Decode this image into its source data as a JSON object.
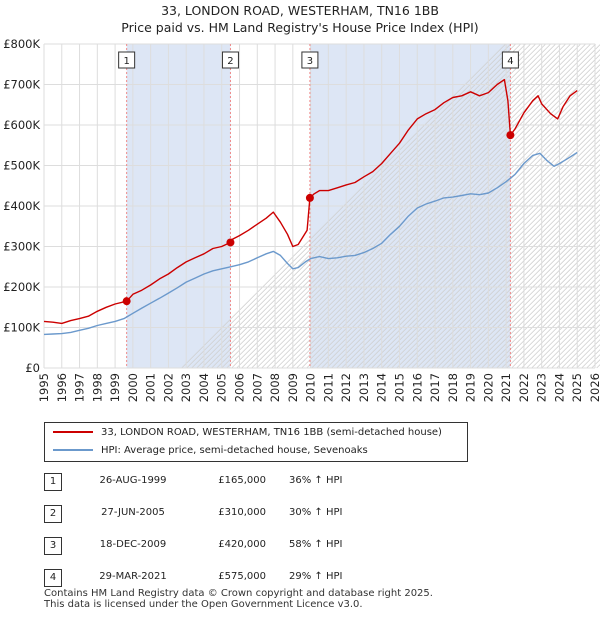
{
  "header": {
    "title": "33, LONDON ROAD, WESTERHAM, TN16 1BB",
    "subtitle": "Price paid vs. HM Land Registry's House Price Index (HPI)"
  },
  "legend": {
    "property": "33, LONDON ROAD, WESTERHAM, TN16 1BB (semi-detached house)",
    "hpi": "HPI: Average price, semi-detached house, Sevenoaks"
  },
  "sales": [
    {
      "num": "1",
      "date": "26-AUG-1999",
      "price": "£165,000",
      "hpi": "36% ↑ HPI"
    },
    {
      "num": "2",
      "date": "27-JUN-2005",
      "price": "£310,000",
      "hpi": "30% ↑ HPI"
    },
    {
      "num": "3",
      "date": "18-DEC-2009",
      "price": "£420,000",
      "hpi": "58% ↑ HPI"
    },
    {
      "num": "4",
      "date": "29-MAR-2021",
      "price": "£575,000",
      "hpi": "29% ↑ HPI"
    }
  ],
  "footer": {
    "line1": "Contains HM Land Registry data © Crown copyright and database right 2025.",
    "line2": "This data is licensed under the Open Government Licence v3.0."
  },
  "colors": {
    "property_line": "#cc0000",
    "hpi_line": "#6b99cc",
    "sale_band": "#dde6f5",
    "marker_line": "#ee8888",
    "grid": "#dddddd"
  },
  "chart_data": {
    "type": "line",
    "xlim": [
      1995,
      2026
    ],
    "ylim": [
      0,
      800000
    ],
    "x_ticks": [
      1995,
      1996,
      1997,
      1998,
      1999,
      2000,
      2001,
      2002,
      2003,
      2004,
      2005,
      2006,
      2007,
      2008,
      2009,
      2010,
      2011,
      2012,
      2013,
      2014,
      2015,
      2016,
      2017,
      2018,
      2019,
      2020,
      2021,
      2022,
      2023,
      2024,
      2025,
      2026
    ],
    "y_ticks": [
      {
        "value": 0,
        "label": "£0"
      },
      {
        "value": 100000,
        "label": "£100K"
      },
      {
        "value": 200000,
        "label": "£200K"
      },
      {
        "value": 300000,
        "label": "£300K"
      },
      {
        "value": 400000,
        "label": "£400K"
      },
      {
        "value": 500000,
        "label": "£500K"
      },
      {
        "value": 600000,
        "label": "£600K"
      },
      {
        "value": 700000,
        "label": "£700K"
      },
      {
        "value": 800000,
        "label": "£800K"
      }
    ],
    "sale_markers": [
      {
        "label": "1",
        "x": 1999.65,
        "y": 165000
      },
      {
        "label": "2",
        "x": 2005.49,
        "y": 310000
      },
      {
        "label": "3",
        "x": 2009.96,
        "y": 420000
      },
      {
        "label": "4",
        "x": 2021.24,
        "y": 575000
      }
    ],
    "series": [
      {
        "name": "33, LONDON ROAD, WESTERHAM, TN16 1BB (semi-detached house)",
        "x": [
          1995.0,
          1995.5,
          1996.0,
          1996.5,
          1997.0,
          1997.5,
          1998.0,
          1998.5,
          1999.0,
          1999.65,
          2000.0,
          2000.5,
          2001.0,
          2001.5,
          2002.0,
          2002.5,
          2003.0,
          2003.5,
          2004.0,
          2004.5,
          2005.0,
          2005.49,
          2005.6,
          2006.0,
          2006.5,
          2007.0,
          2007.5,
          2007.9,
          2008.3,
          2008.7,
          2009.0,
          2009.3,
          2009.8,
          2009.96,
          2010.2,
          2010.5,
          2011.0,
          2011.5,
          2012.0,
          2012.5,
          2013.0,
          2013.5,
          2014.0,
          2014.5,
          2015.0,
          2015.5,
          2016.0,
          2016.5,
          2017.0,
          2017.5,
          2018.0,
          2018.5,
          2019.0,
          2019.5,
          2020.0,
          2020.5,
          2020.9,
          2021.1,
          2021.24,
          2021.5,
          2022.0,
          2022.5,
          2022.8,
          2023.0,
          2023.5,
          2023.9,
          2024.2,
          2024.6,
          2025.0
        ],
        "y": [
          115000,
          113000,
          110000,
          117000,
          122000,
          128000,
          140000,
          150000,
          158000,
          165000,
          182000,
          192000,
          205000,
          220000,
          232000,
          248000,
          262000,
          272000,
          282000,
          295000,
          300000,
          310000,
          318000,
          327000,
          340000,
          355000,
          370000,
          385000,
          360000,
          330000,
          300000,
          305000,
          340000,
          420000,
          430000,
          438000,
          438000,
          445000,
          452000,
          458000,
          472000,
          485000,
          505000,
          530000,
          555000,
          588000,
          615000,
          628000,
          638000,
          655000,
          668000,
          672000,
          682000,
          672000,
          680000,
          700000,
          712000,
          660000,
          575000,
          590000,
          630000,
          660000,
          672000,
          652000,
          628000,
          615000,
          645000,
          672000,
          685000
        ]
      },
      {
        "name": "HPI: Average price, semi-detached house, Sevenoaks",
        "x": [
          1995.0,
          1995.5,
          1996.0,
          1996.5,
          1997.0,
          1997.5,
          1998.0,
          1998.5,
          1999.0,
          1999.5,
          2000.0,
          2000.5,
          2001.0,
          2001.5,
          2002.0,
          2002.5,
          2003.0,
          2003.5,
          2004.0,
          2004.5,
          2005.0,
          2005.5,
          2006.0,
          2006.5,
          2007.0,
          2007.5,
          2007.9,
          2008.3,
          2008.7,
          2009.0,
          2009.3,
          2009.7,
          2010.0,
          2010.5,
          2011.0,
          2011.5,
          2012.0,
          2012.5,
          2013.0,
          2013.5,
          2014.0,
          2014.5,
          2015.0,
          2015.5,
          2016.0,
          2016.5,
          2017.0,
          2017.5,
          2018.0,
          2018.5,
          2019.0,
          2019.5,
          2020.0,
          2020.5,
          2021.0,
          2021.5,
          2022.0,
          2022.5,
          2022.9,
          2023.3,
          2023.7,
          2024.0,
          2024.5,
          2025.0
        ],
        "y": [
          83000,
          84000,
          85000,
          88000,
          93000,
          98000,
          105000,
          110000,
          115000,
          122000,
          135000,
          148000,
          160000,
          172000,
          185000,
          198000,
          212000,
          222000,
          232000,
          240000,
          245000,
          250000,
          255000,
          262000,
          272000,
          282000,
          288000,
          278000,
          258000,
          245000,
          248000,
          262000,
          270000,
          275000,
          270000,
          272000,
          276000,
          278000,
          285000,
          295000,
          308000,
          330000,
          350000,
          375000,
          395000,
          405000,
          412000,
          420000,
          422000,
          426000,
          430000,
          428000,
          432000,
          445000,
          460000,
          478000,
          505000,
          525000,
          530000,
          512000,
          498000,
          505000,
          518000,
          532000
        ]
      }
    ]
  }
}
